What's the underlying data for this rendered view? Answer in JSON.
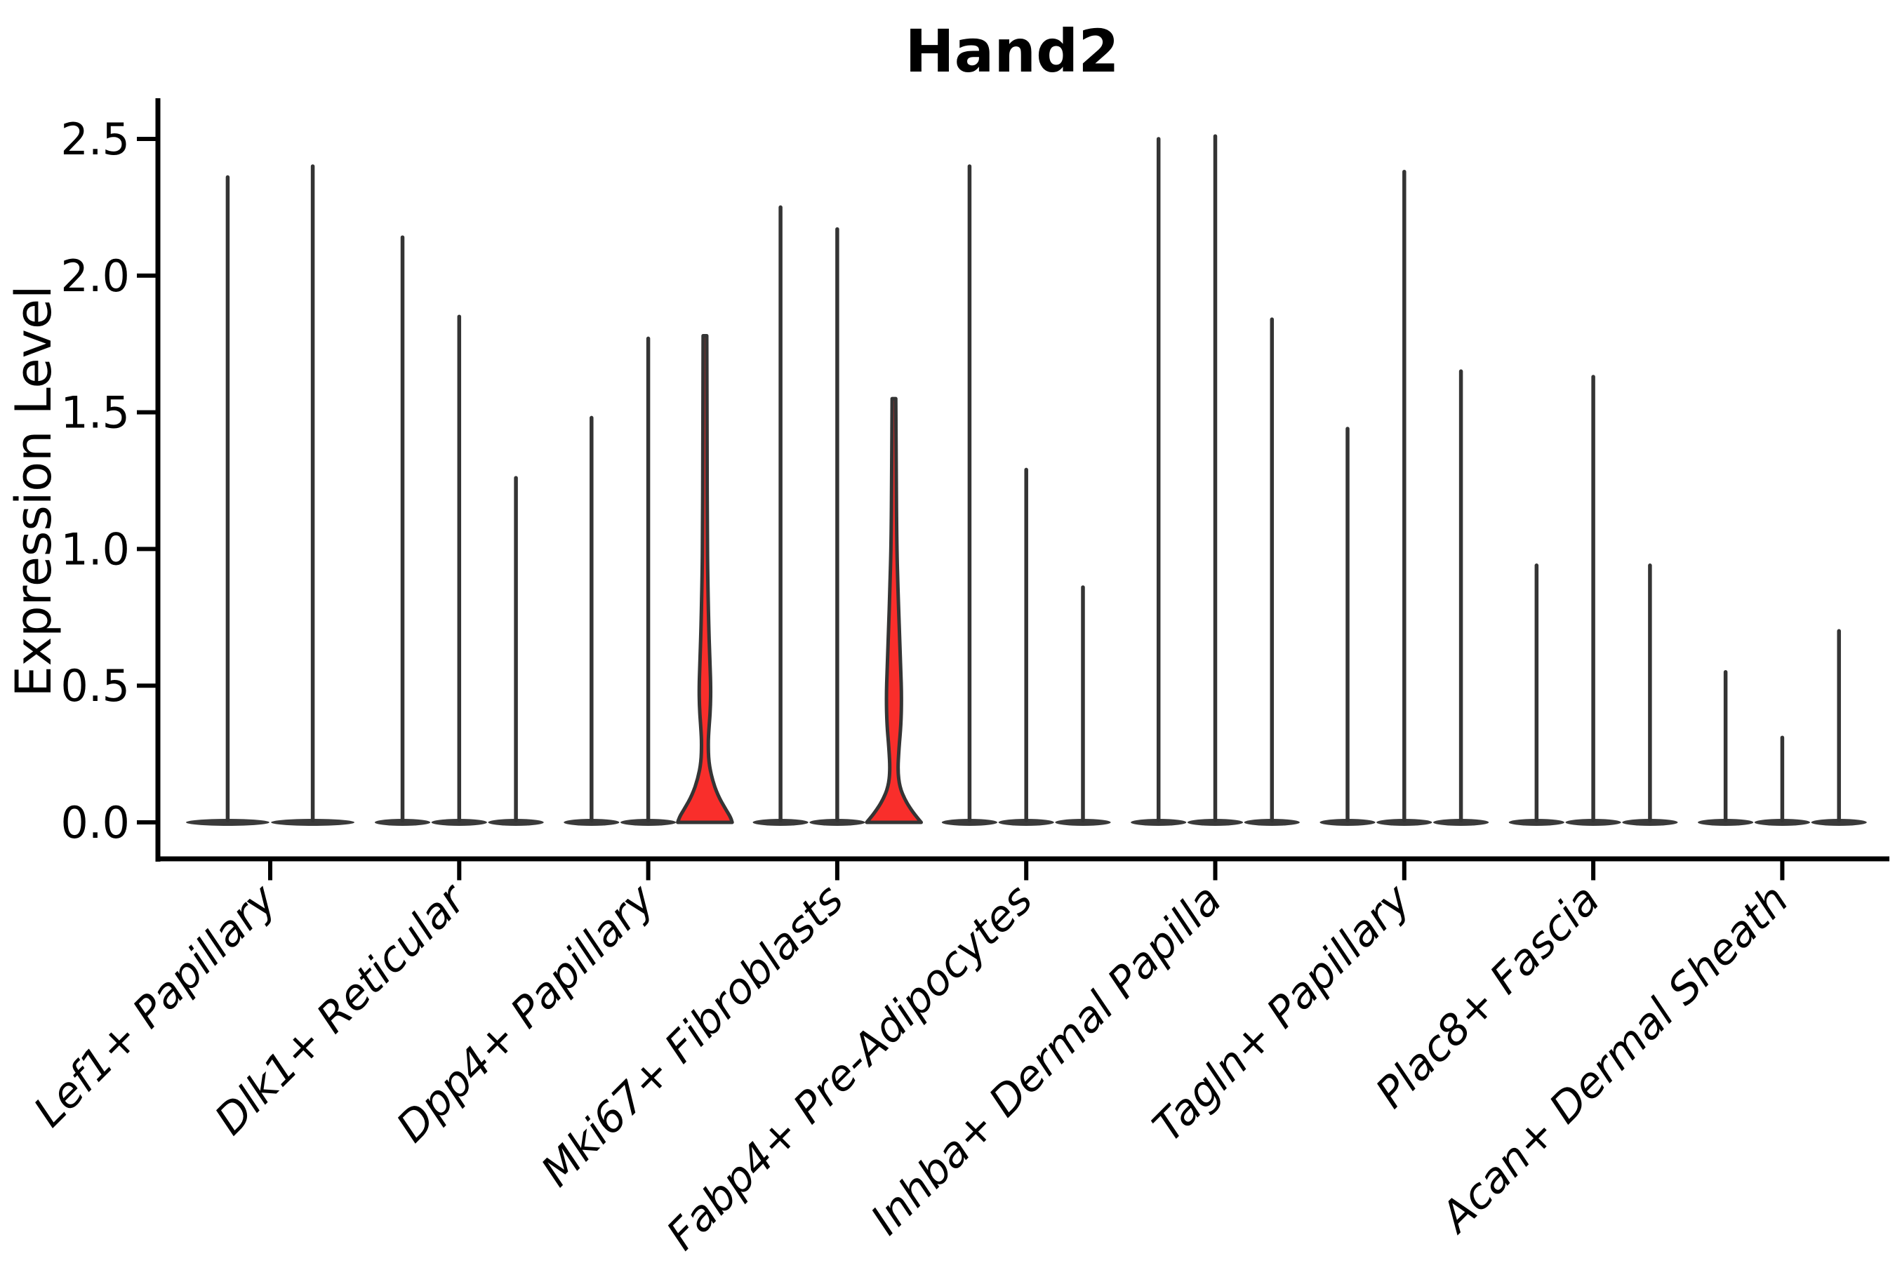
{
  "title": "Hand2",
  "chart_data": {
    "type": "violin",
    "title": "Hand2",
    "xlabel": "",
    "ylabel": "Expression Level",
    "yticks": [
      "0.0",
      "0.5",
      "1.0",
      "1.5",
      "2.0",
      "2.5"
    ],
    "ylim": [
      -0.13,
      2.65
    ],
    "grid": false,
    "legend": "none",
    "categories": [
      "Lef1+ Papillary",
      "Dlk1+ Reticular",
      "Dpp4+ Papillary",
      "Mki67+ Fibroblasts",
      "Fabp4+ Pre-Adipocytes",
      "Inhba+ Dermal Papilla",
      "Tagln+ Papillary",
      "Plac8+ Fascia",
      "Acan+ Dermal Sheath"
    ],
    "groups": [
      {
        "category": "Lef1+ Papillary",
        "violins": [
          {
            "max": 2.36
          },
          {
            "max": 2.4
          }
        ]
      },
      {
        "category": "Dlk1+ Reticular",
        "violins": [
          {
            "max": 2.14
          },
          {
            "max": 1.85
          },
          {
            "max": 1.26
          }
        ]
      },
      {
        "category": "Dpp4+ Papillary",
        "violins": [
          {
            "max": 1.48
          },
          {
            "max": 1.77
          },
          {
            "max": 1.78,
            "highlight": true,
            "profile": [
              [
                1.78,
                0.065
              ],
              [
                1.35,
                0.075
              ],
              [
                1.05,
                0.085
              ],
              [
                0.9,
                0.1
              ],
              [
                0.74,
                0.13
              ],
              [
                0.6,
                0.17
              ],
              [
                0.5,
                0.205
              ],
              [
                0.42,
                0.195
              ],
              [
                0.34,
                0.14
              ],
              [
                0.29,
                0.115
              ],
              [
                0.22,
                0.135
              ],
              [
                0.16,
                0.25
              ],
              [
                0.1,
                0.45
              ],
              [
                0.05,
                0.72
              ],
              [
                0.02,
                0.9
              ],
              [
                0.0,
                0.96
              ]
            ]
          }
        ]
      },
      {
        "category": "Mki67+ Fibroblasts",
        "violins": [
          {
            "max": 2.25
          },
          {
            "max": 2.17
          },
          {
            "max": 1.55,
            "highlight": true,
            "profile": [
              [
                1.55,
                0.065
              ],
              [
                1.28,
                0.08
              ],
              [
                1.02,
                0.1
              ],
              [
                0.86,
                0.14
              ],
              [
                0.7,
                0.19
              ],
              [
                0.56,
                0.24
              ],
              [
                0.46,
                0.27
              ],
              [
                0.36,
                0.25
              ],
              [
                0.27,
                0.175
              ],
              [
                0.19,
                0.135
              ],
              [
                0.13,
                0.2
              ],
              [
                0.08,
                0.4
              ],
              [
                0.04,
                0.65
              ],
              [
                0.01,
                0.88
              ],
              [
                0.0,
                0.96
              ]
            ]
          }
        ]
      },
      {
        "category": "Fabp4+ Pre-Adipocytes",
        "violins": [
          {
            "max": 2.4
          },
          {
            "max": 1.29
          },
          {
            "max": 0.86
          }
        ]
      },
      {
        "category": "Inhba+ Dermal Papilla",
        "violins": [
          {
            "max": 2.5
          },
          {
            "max": 2.51
          },
          {
            "max": 1.84
          }
        ]
      },
      {
        "category": "Tagln+ Papillary",
        "violins": [
          {
            "max": 1.44
          },
          {
            "max": 2.38
          },
          {
            "max": 1.65
          }
        ]
      },
      {
        "category": "Plac8+ Fascia",
        "violins": [
          {
            "max": 0.94
          },
          {
            "max": 1.63
          },
          {
            "max": 0.94
          }
        ]
      },
      {
        "category": "Acan+ Dermal Sheath",
        "violins": [
          {
            "max": 0.55
          },
          {
            "max": 0.31
          },
          {
            "max": 0.7
          }
        ]
      }
    ],
    "colors": {
      "highlight_fill": "#f92e2b",
      "violin_stroke": "#343434",
      "flat_base_fill": "#3a3a3a",
      "axis": "#000000",
      "background": "#ffffff"
    }
  }
}
